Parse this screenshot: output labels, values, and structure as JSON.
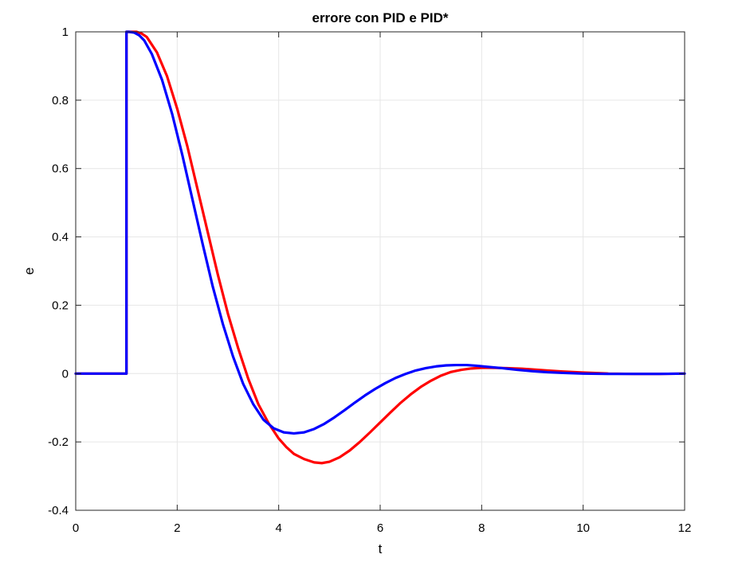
{
  "chart_data": {
    "type": "line",
    "title": "errore con PID e PID*",
    "xlabel": "t",
    "ylabel": "e",
    "xlim": [
      0,
      12
    ],
    "ylim": [
      -0.4,
      1
    ],
    "xticks": [
      0,
      2,
      4,
      6,
      8,
      10,
      12
    ],
    "xtick_labels": [
      "0",
      "2",
      "4",
      "6",
      "8",
      "10",
      "12"
    ],
    "yticks": [
      -0.4,
      -0.2,
      0,
      0.2,
      0.4,
      0.6,
      0.8,
      1
    ],
    "ytick_labels": [
      "-0.4",
      "-0.2",
      "0",
      "0.2",
      "0.4",
      "0.6",
      "0.8",
      "1"
    ],
    "grid": true,
    "legend": "none",
    "series": [
      {
        "color": "#ff0000",
        "x": [
          0,
          1,
          1,
          1.1,
          1.2,
          1.3,
          1.4,
          1.6,
          1.8,
          2.0,
          2.2,
          2.4,
          2.6,
          2.8,
          3.0,
          3.2,
          3.4,
          3.6,
          3.8,
          4.0,
          4.15,
          4.3,
          4.5,
          4.7,
          4.85,
          5.0,
          5.2,
          5.4,
          5.6,
          5.8,
          6.0,
          6.2,
          6.4,
          6.6,
          6.8,
          7.0,
          7.2,
          7.4,
          7.6,
          7.8,
          8.0,
          8.2,
          8.5,
          8.8,
          9.0,
          9.3,
          9.6,
          10.0,
          10.5,
          11.0,
          11.5,
          12.0
        ],
        "y": [
          0,
          0,
          1,
          1.0,
          1.0,
          0.995,
          0.985,
          0.94,
          0.87,
          0.775,
          0.665,
          0.54,
          0.415,
          0.29,
          0.175,
          0.075,
          -0.015,
          -0.09,
          -0.145,
          -0.19,
          -0.215,
          -0.235,
          -0.25,
          -0.26,
          -0.262,
          -0.258,
          -0.245,
          -0.225,
          -0.2,
          -0.172,
          -0.143,
          -0.114,
          -0.086,
          -0.061,
          -0.039,
          -0.021,
          -0.006,
          0.005,
          0.011,
          0.015,
          0.017,
          0.017,
          0.016,
          0.014,
          0.012,
          0.009,
          0.006,
          0.003,
          0.0,
          -0.001,
          -0.001,
          0.0
        ]
      },
      {
        "color": "#0000ff",
        "x": [
          0,
          1,
          1,
          1.05,
          1.15,
          1.25,
          1.35,
          1.5,
          1.7,
          1.9,
          2.1,
          2.3,
          2.5,
          2.7,
          2.9,
          3.1,
          3.3,
          3.5,
          3.7,
          3.9,
          4.1,
          4.3,
          4.5,
          4.7,
          4.9,
          5.1,
          5.3,
          5.5,
          5.7,
          5.9,
          6.1,
          6.3,
          6.5,
          6.7,
          6.9,
          7.1,
          7.3,
          7.5,
          7.7,
          7.9,
          8.1,
          8.4,
          8.7,
          9.0,
          9.3,
          9.6,
          10.0,
          10.5,
          11.0,
          11.5,
          12.0
        ],
        "y": [
          0,
          0,
          1,
          1.0,
          0.998,
          0.99,
          0.975,
          0.935,
          0.86,
          0.76,
          0.64,
          0.51,
          0.38,
          0.255,
          0.145,
          0.05,
          -0.03,
          -0.09,
          -0.135,
          -0.16,
          -0.172,
          -0.175,
          -0.172,
          -0.162,
          -0.147,
          -0.128,
          -0.107,
          -0.085,
          -0.064,
          -0.045,
          -0.028,
          -0.013,
          -0.001,
          0.009,
          0.016,
          0.021,
          0.024,
          0.025,
          0.025,
          0.023,
          0.02,
          0.016,
          0.011,
          0.007,
          0.004,
          0.002,
          0.0,
          -0.001,
          -0.001,
          -0.001,
          0.0
        ]
      }
    ]
  }
}
